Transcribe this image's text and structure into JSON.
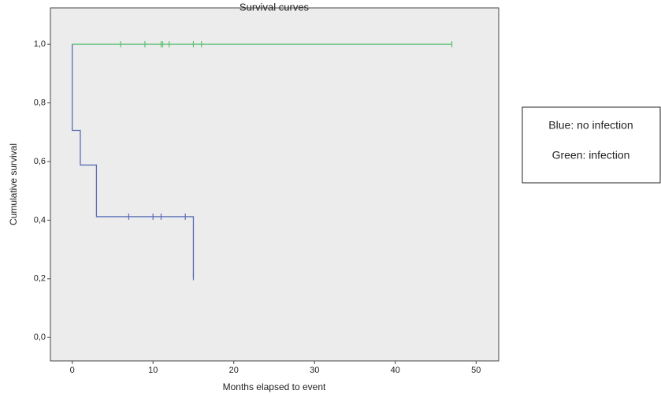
{
  "chart_data": {
    "type": "step",
    "title": "Survival curves",
    "x_label": "Months elapsed to event",
    "y_label": "Cumulative survival",
    "annotations": [
      "Blue: no infection",
      "Green: infection"
    ],
    "xlim": [
      -2.7,
      52.8
    ],
    "ylim": [
      -0.08,
      1.124
    ],
    "xticks": [
      0,
      10,
      20,
      30,
      40,
      50
    ],
    "yticks": [
      {
        "value": 0.0,
        "label": "0,0"
      },
      {
        "value": 0.2,
        "label": "0,2"
      },
      {
        "value": 0.4,
        "label": "0,4"
      },
      {
        "value": 0.6,
        "label": "0,6"
      },
      {
        "value": 0.8,
        "label": "0,8"
      },
      {
        "value": 1.0,
        "label": "1,0"
      }
    ],
    "series": [
      {
        "color": "#5a6db5",
        "x": [
          0,
          0,
          1,
          3,
          15
        ],
        "values": [
          1.0,
          0.706,
          0.588,
          0.412,
          0.206
        ],
        "censored_x": [
          7,
          10,
          11,
          14,
          15
        ],
        "censored_values": [
          0.412,
          0.412,
          0.412,
          0.412,
          0.206
        ]
      },
      {
        "color": "#5cbf73",
        "x": [
          0,
          47
        ],
        "values": [
          1.0,
          1.0
        ],
        "censored_x": [
          6,
          9,
          11,
          11.2,
          12,
          15,
          16,
          47
        ],
        "censored_values": [
          1.0,
          1.0,
          1.0,
          1.0,
          1.0,
          1.0,
          1.0,
          1.0
        ]
      }
    ]
  }
}
